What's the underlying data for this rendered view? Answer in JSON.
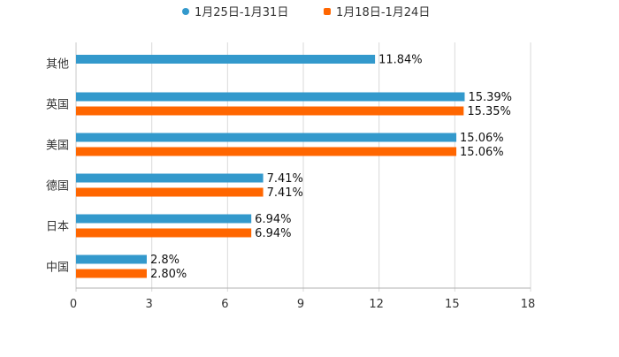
{
  "chart_data": {
    "type": "bar",
    "orientation": "horizontal",
    "title": "",
    "xlabel": "",
    "ylabel": "",
    "xlim": [
      0,
      18
    ],
    "x_ticks": [
      "0",
      "3",
      "6",
      "9",
      "12",
      "15",
      "18"
    ],
    "grid": true,
    "legend_position": "top-center",
    "categories": [
      "其他",
      "英国",
      "美国",
      "德国",
      "日本",
      "中国"
    ],
    "series": [
      {
        "name": "1月25日-1月31日",
        "color": "#3399cc",
        "values": [
          11.84,
          15.39,
          15.06,
          7.41,
          6.94,
          2.8
        ],
        "labels": [
          "11.84%",
          "15.39%",
          "15.06%",
          "7.41%",
          "6.94%",
          "2.8%"
        ]
      },
      {
        "name": "1月18日-1月24日",
        "color": "#ff6600",
        "values": [
          null,
          15.35,
          15.06,
          7.41,
          6.94,
          2.8
        ],
        "labels": [
          null,
          "15.35%",
          "15.06%",
          "7.41%",
          "6.94%",
          "2.80%"
        ]
      }
    ]
  }
}
